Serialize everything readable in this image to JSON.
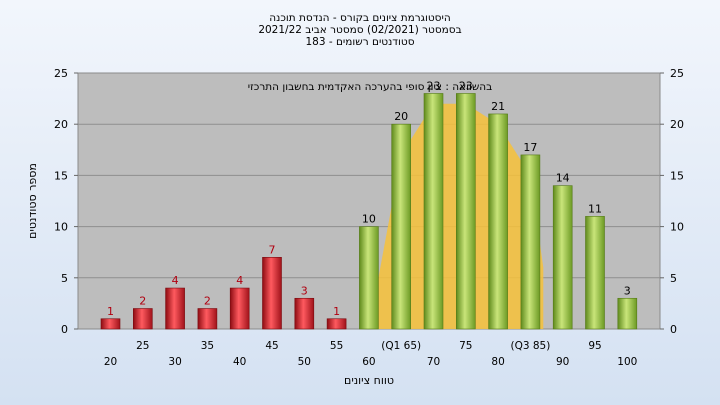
{
  "chart_data": {
    "type": "bar",
    "title": [
      "היסטוגרמת ציונים בקורס - הנדסת תוכנה",
      "בסמסטר  (02/2021)  סמסטר אביב 2021/22",
      "סטודנטים רשומים - 183"
    ],
    "annotation": "בהשוואה : ציון סופי בהערכה האקדמית בחשבון התרכזי",
    "xlabel": "טווח ציונים",
    "ylabel": "מספר סטודנטים",
    "ylim": [
      0,
      25
    ],
    "yticks": [
      0,
      5,
      10,
      15,
      20,
      25
    ],
    "grid": true,
    "categories": [
      "20",
      "25",
      "30",
      "35",
      "40",
      "45",
      "50",
      "55",
      "60",
      "(Q1 65)",
      "70",
      "75",
      "80",
      "(Q3 85)",
      "90",
      "95",
      "100"
    ],
    "values": [
      1,
      2,
      4,
      2,
      4,
      7,
      3,
      1,
      10,
      20,
      23,
      23,
      21,
      17,
      14,
      11,
      3
    ],
    "failing_color": "#e0262e",
    "passing_color": "#9cc43c",
    "failing_label_color": "#b00010",
    "area_color": "#f7c23a",
    "comparison_area": {
      "x": [
        60,
        65,
        70,
        75,
        80,
        85,
        87
      ],
      "y": [
        0,
        17,
        22,
        22,
        20,
        15,
        6
      ]
    }
  }
}
